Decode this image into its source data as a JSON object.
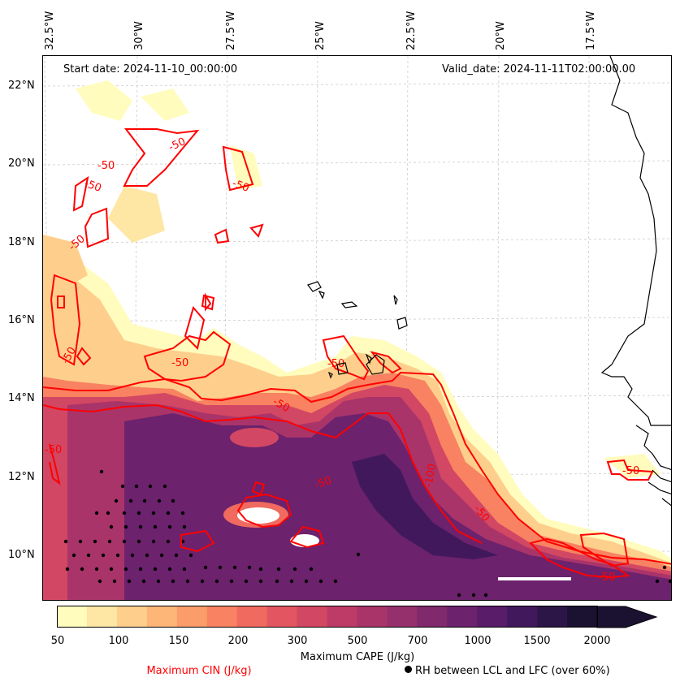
{
  "map": {
    "start_date": "Start date: 2024-11-10_00:00:00",
    "valid_date": "Valid_date: 2024-11-11T02:00:00.00",
    "lon_labels": [
      "32.5°W",
      "30°W",
      "27.5°W",
      "25°W",
      "22.5°W",
      "20°W",
      "17.5°W"
    ],
    "lat_labels": [
      "22°N",
      "20°N",
      "18°N",
      "16°N",
      "14°N",
      "12°N",
      "10°N"
    ],
    "lon_range": [
      -32.5,
      -15.5
    ],
    "lat_range": [
      9.0,
      22.8
    ],
    "gridlines": true,
    "cin_contour_label": "-50",
    "cin_contour_label_2": "-100",
    "colors": {
      "cin_contour": "#ff0000",
      "coastline": "#000000",
      "gridline": "#cccccc"
    }
  },
  "colorbar": {
    "ticks": [
      "50",
      "100",
      "150",
      "200",
      "300",
      "500",
      "700",
      "1000",
      "1500",
      "2000"
    ],
    "colors": [
      "#fffcbe",
      "#fee6a4",
      "#fecf8c",
      "#fdb678",
      "#fb9d6a",
      "#f88261",
      "#f06a5f",
      "#e35560",
      "#d24763",
      "#be3b67",
      "#a9346a",
      "#95306c",
      "#80296d",
      "#6c226d",
      "#591c68",
      "#42185c",
      "#2c1647",
      "#1b1232"
    ],
    "extend": "max",
    "title": "Maximum CAPE (J/kg)"
  },
  "legend": {
    "cin": "Maximum CIN (J/kg)",
    "rh": "RH between LCL and LFC (over 60%)"
  }
}
